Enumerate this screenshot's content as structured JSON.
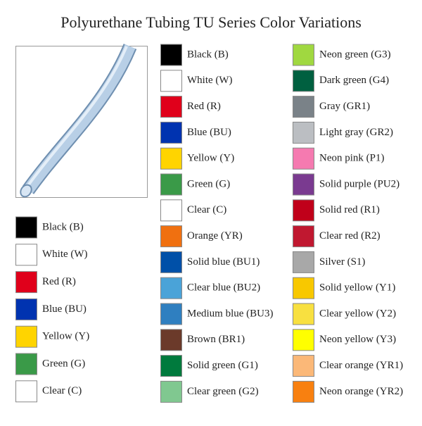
{
  "title": "Polyurethane Tubing TU Series Color Variations",
  "groups": [
    {
      "items": [
        {
          "label": "Black (B)",
          "color": "#000000"
        },
        {
          "label": "White (W)",
          "color": "#ffffff"
        },
        {
          "label": "Red (R)",
          "color": "#e0001b"
        },
        {
          "label": "Blue (BU)",
          "color": "#0033b0"
        },
        {
          "label": "Yellow (Y)",
          "color": "#ffd400"
        },
        {
          "label": "Green (G)",
          "color": "#3a9a48"
        },
        {
          "label": "Clear (C)",
          "color": "#ffffff"
        }
      ]
    },
    {
      "items": [
        {
          "label": "Black (B)",
          "color": "#000000"
        },
        {
          "label": "White (W)",
          "color": "#ffffff"
        },
        {
          "label": "Red (R)",
          "color": "#e0001b"
        },
        {
          "label": "Blue (BU)",
          "color": "#0033b0"
        },
        {
          "label": "Yellow (Y)",
          "color": "#ffd400"
        },
        {
          "label": "Green (G)",
          "color": "#3a9a48"
        },
        {
          "label": "Clear (C)",
          "color": "#ffffff"
        },
        {
          "label": "Orange (YR)",
          "color": "#f07010"
        },
        {
          "label": "Solid blue (BU1)",
          "color": "#0050a8"
        },
        {
          "label": "Clear blue (BU2)",
          "color": "#4aa3d8"
        },
        {
          "label": "Medium blue (BU3)",
          "color": "#2f7fc0"
        },
        {
          "label": "Brown (BR1)",
          "color": "#6b3a2a"
        },
        {
          "label": "Solid green (G1)",
          "color": "#007a3d"
        },
        {
          "label": "Clear green (G2)",
          "color": "#80c890"
        }
      ]
    },
    {
      "items": [
        {
          "label": "Neon green (G3)",
          "color": "#a0d840"
        },
        {
          "label": "Dark green (G4)",
          "color": "#006040"
        },
        {
          "label": "Gray (GR1)",
          "color": "#7a8288"
        },
        {
          "label": "Light gray (GR2)",
          "color": "#bbbec2"
        },
        {
          "label": "Neon pink (P1)",
          "color": "#f57ab0"
        },
        {
          "label": "Solid purple (PU2)",
          "color": "#7a3a90"
        },
        {
          "label": "Solid red (R1)",
          "color": "#c0001a"
        },
        {
          "label": "Clear red (R2)",
          "color": "#c01830"
        },
        {
          "label": "Silver (S1)",
          "color": "#a8a8a8"
        },
        {
          "label": "Solid yellow (Y1)",
          "color": "#f8c800"
        },
        {
          "label": "Clear yellow (Y2)",
          "color": "#f8e040"
        },
        {
          "label": "Neon yellow (Y3)",
          "color": "#ffff00"
        },
        {
          "label": "Clear orange (YR1)",
          "color": "#fbb878"
        },
        {
          "label": "Neon orange (YR2)",
          "color": "#f88010"
        }
      ]
    }
  ]
}
